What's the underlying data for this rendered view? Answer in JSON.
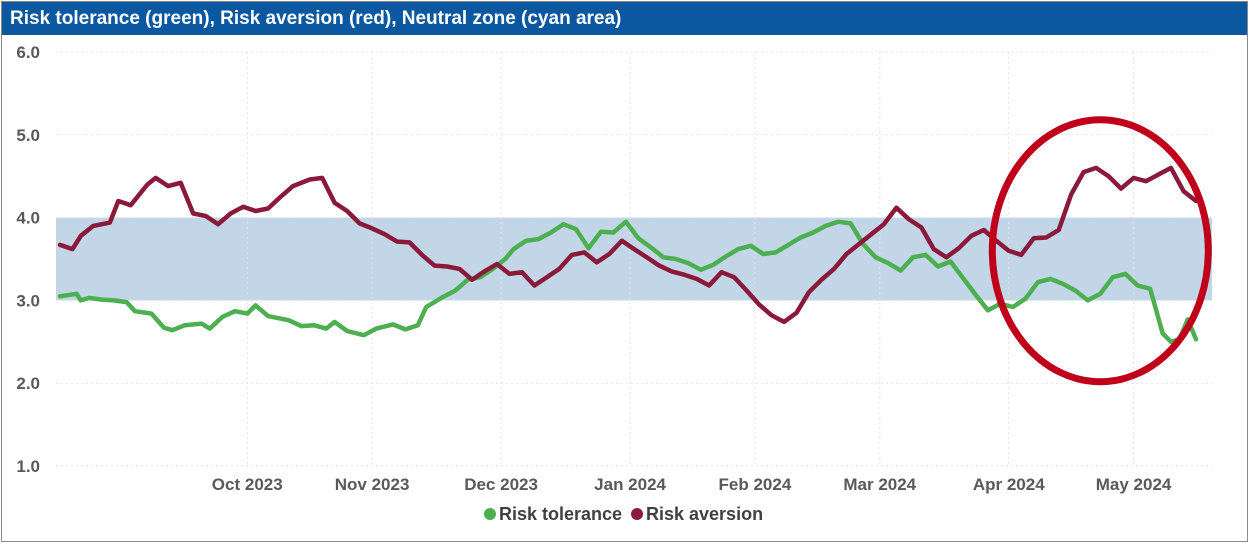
{
  "title": "Risk tolerance (green), Risk aversion (red), Neutral zone (cyan area)",
  "colors": {
    "title_bar": "#0b58a0",
    "risk_tolerance": "#4caf50",
    "risk_aversion": "#8b1a3a",
    "neutral_zone": "#c2d6e8",
    "highlight_circle": "#c0001a"
  },
  "chart_data": {
    "type": "line",
    "title": "Risk tolerance (green), Risk aversion (red), Neutral zone (cyan area)",
    "xlabel": "",
    "ylabel": "",
    "ylim": [
      1.0,
      6.0
    ],
    "y_ticks": [
      "1.0",
      "2.0",
      "3.0",
      "4.0",
      "5.0",
      "6.0"
    ],
    "x_ticks": [
      "Oct 2023",
      "Nov 2023",
      "Dec 2023",
      "Jan 2024",
      "Feb 2024",
      "Mar 2024",
      "Apr 2024",
      "May 2024"
    ],
    "x_range": [
      "2023-09-01",
      "2024-05-31"
    ],
    "grid": true,
    "legend_position": "bottom",
    "neutral_zone": [
      3.0,
      4.0
    ],
    "highlight": {
      "shape": "ellipse",
      "x_center": "2024-05-08",
      "y_center": 3.6
    },
    "series": [
      {
        "name": "Risk tolerance",
        "points": [
          [
            "2023-09-01",
            3.05
          ],
          [
            "2023-09-05",
            3.08
          ],
          [
            "2023-09-06",
            3.0
          ],
          [
            "2023-09-08",
            3.03
          ],
          [
            "2023-09-11",
            3.01
          ],
          [
            "2023-09-14",
            3.0
          ],
          [
            "2023-09-17",
            2.98
          ],
          [
            "2023-09-19",
            2.87
          ],
          [
            "2023-09-23",
            2.84
          ],
          [
            "2023-09-26",
            2.67
          ],
          [
            "2023-09-28",
            2.64
          ],
          [
            "2023-10-01",
            2.7
          ],
          [
            "2023-10-05",
            2.72
          ],
          [
            "2023-10-07",
            2.66
          ],
          [
            "2023-10-10",
            2.8
          ],
          [
            "2023-10-13",
            2.87
          ],
          [
            "2023-10-16",
            2.84
          ],
          [
            "2023-10-18",
            2.94
          ],
          [
            "2023-10-21",
            2.81
          ],
          [
            "2023-10-26",
            2.76
          ],
          [
            "2023-10-29",
            2.69
          ],
          [
            "2023-11-01",
            2.7
          ],
          [
            "2023-11-04",
            2.66
          ],
          [
            "2023-11-06",
            2.74
          ],
          [
            "2023-11-09",
            2.63
          ],
          [
            "2023-11-13",
            2.58
          ],
          [
            "2023-11-16",
            2.66
          ],
          [
            "2023-11-20",
            2.71
          ],
          [
            "2023-11-23",
            2.65
          ],
          [
            "2023-11-26",
            2.7
          ],
          [
            "2023-11-28",
            2.92
          ],
          [
            "2023-12-02",
            3.04
          ],
          [
            "2023-12-05",
            3.12
          ],
          [
            "2023-12-08",
            3.25
          ],
          [
            "2023-12-11",
            3.28
          ],
          [
            "2023-12-14",
            3.38
          ],
          [
            "2023-12-17",
            3.5
          ],
          [
            "2023-12-19",
            3.62
          ],
          [
            "2023-12-22",
            3.72
          ],
          [
            "2023-12-25",
            3.74
          ],
          [
            "2023-12-28",
            3.82
          ],
          [
            "2023-12-31",
            3.92
          ],
          [
            "2024-01-03",
            3.86
          ],
          [
            "2024-01-06",
            3.63
          ],
          [
            "2024-01-09",
            3.83
          ],
          [
            "2024-01-12",
            3.82
          ],
          [
            "2024-01-15",
            3.95
          ],
          [
            "2024-01-18",
            3.75
          ],
          [
            "2024-01-21",
            3.64
          ],
          [
            "2024-01-24",
            3.52
          ],
          [
            "2024-01-27",
            3.5
          ],
          [
            "2024-01-30",
            3.45
          ],
          [
            "2024-02-02",
            3.37
          ],
          [
            "2024-02-05",
            3.43
          ],
          [
            "2024-02-08",
            3.53
          ],
          [
            "2024-02-11",
            3.62
          ],
          [
            "2024-02-14",
            3.66
          ],
          [
            "2024-02-17",
            3.56
          ],
          [
            "2024-02-20",
            3.58
          ],
          [
            "2024-02-23",
            3.67
          ],
          [
            "2024-02-26",
            3.76
          ],
          [
            "2024-02-29",
            3.82
          ],
          [
            "2024-03-03",
            3.9
          ],
          [
            "2024-03-06",
            3.95
          ],
          [
            "2024-03-09",
            3.93
          ],
          [
            "2024-03-12",
            3.68
          ],
          [
            "2024-03-15",
            3.52
          ],
          [
            "2024-03-18",
            3.45
          ],
          [
            "2024-03-21",
            3.36
          ],
          [
            "2024-03-24",
            3.52
          ],
          [
            "2024-03-27",
            3.55
          ],
          [
            "2024-03-30",
            3.41
          ],
          [
            "2024-04-02",
            3.47
          ],
          [
            "2024-04-05",
            3.27
          ],
          [
            "2024-04-08",
            3.07
          ],
          [
            "2024-04-11",
            2.88
          ],
          [
            "2024-04-14",
            2.96
          ],
          [
            "2024-04-17",
            2.92
          ],
          [
            "2024-04-20",
            3.02
          ],
          [
            "2024-04-23",
            3.22
          ],
          [
            "2024-04-26",
            3.26
          ],
          [
            "2024-04-29",
            3.2
          ],
          [
            "2024-05-02",
            3.12
          ],
          [
            "2024-05-05",
            3.0
          ],
          [
            "2024-05-08",
            3.08
          ],
          [
            "2024-05-11",
            3.28
          ],
          [
            "2024-05-14",
            3.32
          ],
          [
            "2024-05-17",
            3.18
          ],
          [
            "2024-05-20",
            3.14
          ],
          [
            "2024-05-23",
            2.6
          ],
          [
            "2024-05-25",
            2.5
          ],
          [
            "2024-05-27",
            2.53
          ],
          [
            "2024-05-29",
            2.77
          ],
          [
            "2024-05-31",
            2.53
          ]
        ]
      },
      {
        "name": "Risk aversion",
        "points": [
          [
            "2023-09-01",
            3.67
          ],
          [
            "2023-09-04",
            3.62
          ],
          [
            "2023-09-06",
            3.78
          ],
          [
            "2023-09-09",
            3.9
          ],
          [
            "2023-09-13",
            3.94
          ],
          [
            "2023-09-15",
            4.2
          ],
          [
            "2023-09-18",
            4.15
          ],
          [
            "2023-09-22",
            4.4
          ],
          [
            "2023-09-24",
            4.48
          ],
          [
            "2023-09-27",
            4.38
          ],
          [
            "2023-09-30",
            4.42
          ],
          [
            "2023-10-03",
            4.05
          ],
          [
            "2023-10-06",
            4.02
          ],
          [
            "2023-10-09",
            3.92
          ],
          [
            "2023-10-12",
            4.05
          ],
          [
            "2023-10-15",
            4.13
          ],
          [
            "2023-10-18",
            4.08
          ],
          [
            "2023-10-21",
            4.11
          ],
          [
            "2023-10-24",
            4.25
          ],
          [
            "2023-10-27",
            4.38
          ],
          [
            "2023-10-31",
            4.46
          ],
          [
            "2023-11-03",
            4.48
          ],
          [
            "2023-11-06",
            4.18
          ],
          [
            "2023-11-09",
            4.08
          ],
          [
            "2023-11-12",
            3.93
          ],
          [
            "2023-11-15",
            3.87
          ],
          [
            "2023-11-18",
            3.8
          ],
          [
            "2023-11-21",
            3.71
          ],
          [
            "2023-11-24",
            3.7
          ],
          [
            "2023-11-27",
            3.55
          ],
          [
            "2023-11-30",
            3.42
          ],
          [
            "2023-12-03",
            3.41
          ],
          [
            "2023-12-06",
            3.38
          ],
          [
            "2023-12-09",
            3.25
          ],
          [
            "2023-12-12",
            3.35
          ],
          [
            "2023-12-15",
            3.44
          ],
          [
            "2023-12-18",
            3.32
          ],
          [
            "2023-12-21",
            3.34
          ],
          [
            "2023-12-24",
            3.18
          ],
          [
            "2023-12-27",
            3.28
          ],
          [
            "2023-12-30",
            3.38
          ],
          [
            "2024-01-02",
            3.55
          ],
          [
            "2024-01-05",
            3.58
          ],
          [
            "2024-01-08",
            3.46
          ],
          [
            "2024-01-11",
            3.56
          ],
          [
            "2024-01-14",
            3.72
          ],
          [
            "2024-01-17",
            3.62
          ],
          [
            "2024-01-20",
            3.52
          ],
          [
            "2024-01-23",
            3.42
          ],
          [
            "2024-01-26",
            3.35
          ],
          [
            "2024-01-29",
            3.31
          ],
          [
            "2024-02-01",
            3.26
          ],
          [
            "2024-02-04",
            3.18
          ],
          [
            "2024-02-07",
            3.34
          ],
          [
            "2024-02-10",
            3.28
          ],
          [
            "2024-02-13",
            3.12
          ],
          [
            "2024-02-16",
            2.95
          ],
          [
            "2024-02-19",
            2.82
          ],
          [
            "2024-02-22",
            2.74
          ],
          [
            "2024-02-25",
            2.85
          ],
          [
            "2024-02-28",
            3.1
          ],
          [
            "2024-03-02",
            3.25
          ],
          [
            "2024-03-05",
            3.38
          ],
          [
            "2024-03-08",
            3.56
          ],
          [
            "2024-03-11",
            3.68
          ],
          [
            "2024-03-14",
            3.8
          ],
          [
            "2024-03-17",
            3.92
          ],
          [
            "2024-03-20",
            4.12
          ],
          [
            "2024-03-23",
            3.98
          ],
          [
            "2024-03-26",
            3.88
          ],
          [
            "2024-03-29",
            3.62
          ],
          [
            "2024-04-01",
            3.52
          ],
          [
            "2024-04-04",
            3.63
          ],
          [
            "2024-04-07",
            3.78
          ],
          [
            "2024-04-10",
            3.85
          ],
          [
            "2024-04-13",
            3.72
          ],
          [
            "2024-04-16",
            3.6
          ],
          [
            "2024-04-19",
            3.55
          ],
          [
            "2024-04-22",
            3.75
          ],
          [
            "2024-04-25",
            3.76
          ],
          [
            "2024-04-28",
            3.85
          ],
          [
            "2024-05-01",
            4.28
          ],
          [
            "2024-05-04",
            4.55
          ],
          [
            "2024-05-07",
            4.6
          ],
          [
            "2024-05-10",
            4.5
          ],
          [
            "2024-05-13",
            4.35
          ],
          [
            "2024-05-16",
            4.48
          ],
          [
            "2024-05-19",
            4.44
          ],
          [
            "2024-05-22",
            4.52
          ],
          [
            "2024-05-25",
            4.6
          ],
          [
            "2024-05-28",
            4.32
          ],
          [
            "2024-05-31",
            4.2
          ]
        ]
      }
    ]
  },
  "legend": {
    "items": [
      {
        "label": "Risk tolerance"
      },
      {
        "label": "Risk aversion"
      }
    ]
  }
}
